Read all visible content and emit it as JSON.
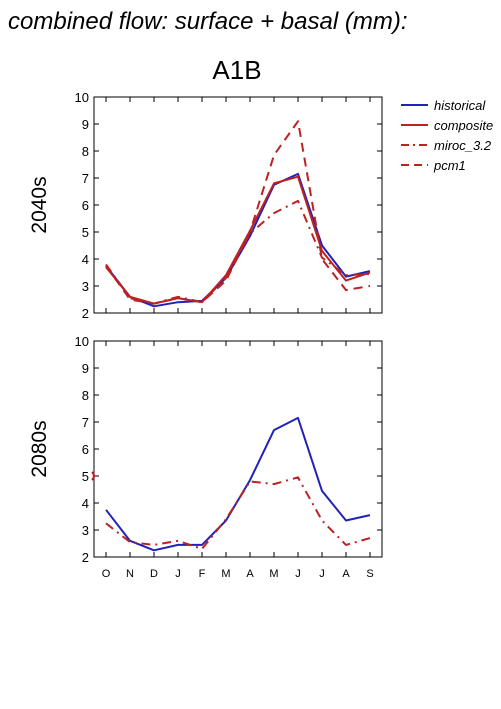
{
  "title": "combined flow: surface + basal (mm):",
  "chart_data": {
    "type": "line",
    "subtitle": "A1B",
    "categories": [
      "O",
      "N",
      "D",
      "J",
      "F",
      "M",
      "A",
      "M",
      "J",
      "J",
      "A",
      "S"
    ],
    "ylim": [
      2,
      10
    ],
    "yticks": [
      2,
      3,
      4,
      5,
      6,
      7,
      8,
      9,
      10
    ],
    "legend_position": "top-right",
    "legend": [
      "historical",
      "composite",
      "miroc_3.2",
      "pcm1"
    ],
    "series_styles": [
      {
        "name": "historical",
        "color": "#2222bb",
        "dash": "solid"
      },
      {
        "name": "composite",
        "color": "#bb2222",
        "dash": "solid"
      },
      {
        "name": "miroc_3.2",
        "color": "#bb2222",
        "dash": "dashdot"
      },
      {
        "name": "pcm1",
        "color": "#bb2222",
        "dash": "dashed"
      }
    ],
    "panels": [
      {
        "ylabel": "2040s",
        "series": [
          {
            "name": "historical",
            "values": [
              3.75,
              2.6,
              2.25,
              2.4,
              2.45,
              3.3,
              4.85,
              6.75,
              7.15,
              4.5,
              3.35,
              3.55
            ]
          },
          {
            "name": "composite",
            "values": [
              3.7,
              2.6,
              2.35,
              2.55,
              2.4,
              3.4,
              5.05,
              6.8,
              7.05,
              4.3,
              3.2,
              3.5
            ]
          },
          {
            "name": "miroc_3.2",
            "values": [
              3.8,
              2.55,
              2.35,
              2.6,
              2.4,
              3.3,
              4.95,
              5.7,
              6.15,
              4.05,
              3.4,
              3.45
            ]
          },
          {
            "name": "pcm1",
            "values": [
              3.75,
              2.5,
              2.35,
              2.55,
              2.4,
              3.2,
              5.0,
              7.85,
              9.1,
              4.0,
              2.85,
              3.0
            ]
          }
        ]
      },
      {
        "ylabel": "2080s",
        "series": [
          {
            "name": "historical",
            "values": [
              3.75,
              2.6,
              2.25,
              2.45,
              2.45,
              3.35,
              4.85,
              6.7,
              7.15,
              4.45,
              3.35,
              3.55
            ]
          },
          {
            "name": "miroc_3.2",
            "values": [
              3.25,
              2.55,
              2.45,
              2.6,
              2.3,
              3.4,
              4.8,
              4.7,
              4.95,
              3.35,
              2.45,
              2.7
            ]
          }
        ]
      }
    ]
  }
}
